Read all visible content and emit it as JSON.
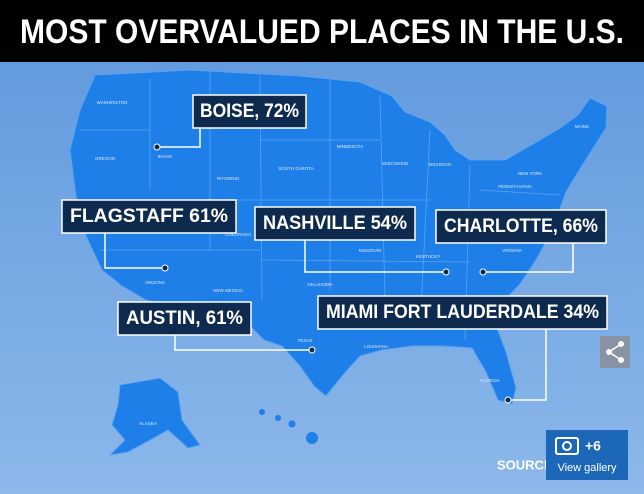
{
  "title": "MOST OVERVALUED PLACES IN THE U.S.",
  "callouts": [
    {
      "label": "BOISE, 72%"
    },
    {
      "label": "FLAGSTAFF 61%"
    },
    {
      "label": "NASHVILLE 54%"
    },
    {
      "label": "CHARLOTTE, 66%"
    },
    {
      "label": "AUSTIN, 61%"
    },
    {
      "label": "MIAMI FORT LAUDERDALE 34%"
    }
  ],
  "state_labels": [
    "WASHINGTON",
    "OREGON",
    "IDAHO",
    "WYOMING",
    "SOUTH DAKOTA",
    "MINNESOTA",
    "WISCONSIN",
    "MICHIGAN",
    "NEW YORK",
    "MAINE",
    "PENNSYLVANIA",
    "VIRGINIA",
    "KENTUCKY",
    "MISSOURI",
    "OKLAHOMA",
    "ARIZONA",
    "NEW MEXICO",
    "TEXAS",
    "LOUISIANA",
    "FLORIDA",
    "ALASKA",
    "COLORADO"
  ],
  "source": "SOURCE",
  "gallery": {
    "count": "+6",
    "label": "View gallery"
  }
}
